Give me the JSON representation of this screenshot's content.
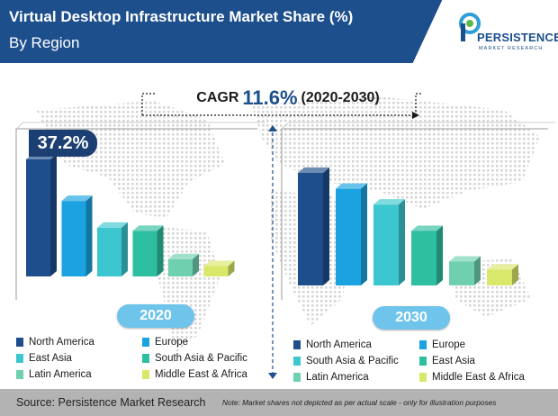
{
  "header": {
    "title": "Virtual Desktop Infrastructure Market Share (%)",
    "subtitle": "By Region"
  },
  "logo": {
    "name": "PERSISTENCE",
    "tagline": "MARKET RESEARCH"
  },
  "cagr": {
    "label": "CAGR",
    "value": "11.6%",
    "period": "(2020-2030)"
  },
  "highlight": {
    "value": "37.2%"
  },
  "colors": {
    "header": "#1c4f8c",
    "north_america": "#1f4e8c",
    "europe": "#1aa3e0",
    "east_asia": "#3cc6d0",
    "south_asia_pacific": "#2dbfa0",
    "latin_america": "#6fd0b0",
    "middle_east_africa": "#d9e86a",
    "year_badge": "#6fc4ec"
  },
  "chart_data": [
    {
      "type": "bar",
      "year": "2020",
      "categories": [
        "North America",
        "Europe",
        "East Asia",
        "South Asia & Pacific",
        "Latin America",
        "Middle East & Africa"
      ],
      "values": [
        37.2,
        24,
        15.5,
        14.5,
        5.5,
        3.3
      ],
      "colors": [
        "#1f4e8c",
        "#1aa3e0",
        "#3cc6d0",
        "#2dbfa0",
        "#6fd0b0",
        "#d9e86a"
      ],
      "data_labels": [
        "37.2%",
        "",
        "",
        "",
        "",
        ""
      ],
      "legend": [
        {
          "label": "North America",
          "color": "#1f4e8c"
        },
        {
          "label": "Europe",
          "color": "#1aa3e0"
        },
        {
          "label": "East Asia",
          "color": "#3cc6d0"
        },
        {
          "label": "South Asia & Pacific",
          "color": "#2dbfa0"
        },
        {
          "label": "Latin America",
          "color": "#6fd0b0"
        },
        {
          "label": "Middle East & Africa",
          "color": "#d9e86a"
        }
      ]
    },
    {
      "type": "bar",
      "year": "2030",
      "categories": [
        "North America",
        "Europe",
        "South Asia & Pacific",
        "East Asia",
        "Latin America",
        "Middle East & Africa"
      ],
      "values": [
        32,
        27.5,
        23,
        15.5,
        6.8,
        4.5
      ],
      "colors": [
        "#1f4e8c",
        "#1aa3e0",
        "#3cc6d0",
        "#2dbfa0",
        "#6fd0b0",
        "#d9e86a"
      ],
      "legend": [
        {
          "label": "North America",
          "color": "#1f4e8c"
        },
        {
          "label": "Europe",
          "color": "#1aa3e0"
        },
        {
          "label": "South Asia & Pacific",
          "color": "#3cc6d0"
        },
        {
          "label": "East Asia",
          "color": "#2dbfa0"
        },
        {
          "label": "Latin America",
          "color": "#6fd0b0"
        },
        {
          "label": "Middle East & Africa",
          "color": "#d9e86a"
        }
      ]
    }
  ],
  "footer": {
    "source": "Source: Persistence Market Research",
    "note": "Note: Market shares not depicted as per actual scale - only for illustration purposes"
  }
}
